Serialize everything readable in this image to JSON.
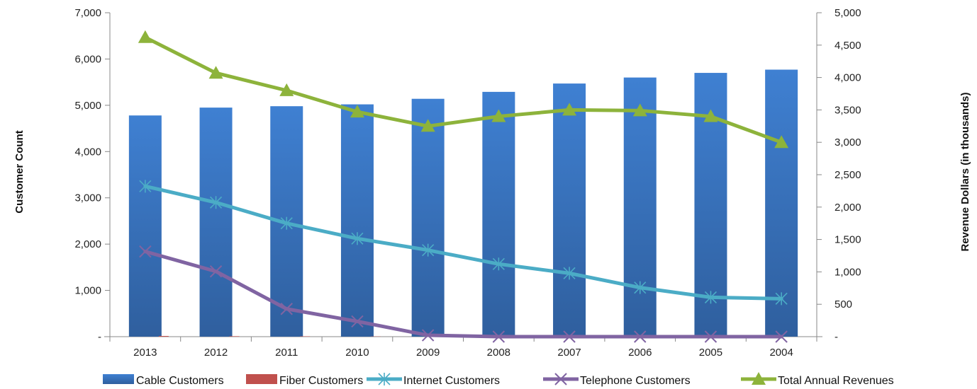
{
  "chart_data": {
    "type": "bar",
    "categories": [
      "2013",
      "2012",
      "2011",
      "2010",
      "2009",
      "2008",
      "2007",
      "2006",
      "2005",
      "2004"
    ],
    "y_left": {
      "label": "Customer Count",
      "range": [
        0,
        7000
      ],
      "ticks": [
        0,
        1000,
        2000,
        3000,
        4000,
        5000,
        6000,
        7000
      ],
      "tick_labels": [
        "-",
        "1,000",
        "2,000",
        "3,000",
        "4,000",
        "5,000",
        "6,000",
        "7,000"
      ]
    },
    "y_right": {
      "label": "Revenue Dollars (in thousands)",
      "range": [
        0,
        5000
      ],
      "ticks": [
        0,
        500,
        1000,
        1500,
        2000,
        2500,
        3000,
        3500,
        4000,
        4500,
        5000
      ],
      "tick_labels": [
        "-",
        "500",
        "1,000",
        "1,500",
        "2,000",
        "2,500",
        "3,000",
        "3,500",
        "4,000",
        "4,500",
        "5,000"
      ]
    },
    "series": [
      {
        "name": "Cable Customers",
        "type": "bar",
        "axis": "left",
        "color": "#3a78c8",
        "values": [
          4780,
          4950,
          4980,
          5020,
          5140,
          5290,
          5470,
          5600,
          5700,
          5770
        ]
      },
      {
        "name": "Fiber Customers",
        "type": "bar",
        "axis": "left",
        "color": "#c0504d",
        "values": [
          15,
          10,
          8,
          5,
          0,
          0,
          0,
          0,
          0,
          0
        ]
      },
      {
        "name": "Internet Customers",
        "type": "line",
        "axis": "left",
        "color": "#4bacc6",
        "marker": "star",
        "values": [
          3250,
          2900,
          2450,
          2120,
          1870,
          1570,
          1370,
          1060,
          850,
          820
        ]
      },
      {
        "name": "Telephone Customers",
        "type": "line",
        "axis": "left",
        "color": "#8064a2",
        "marker": "x",
        "values": [
          1840,
          1410,
          600,
          330,
          30,
          0,
          0,
          0,
          0,
          0
        ]
      },
      {
        "name": "Total Annual Revenues",
        "type": "line",
        "axis": "right",
        "color": "#8db33b",
        "marker": "triangle",
        "values": [
          4620,
          4070,
          3800,
          3470,
          3250,
          3400,
          3500,
          3490,
          3400,
          3000
        ]
      }
    ],
    "grid": false,
    "legend_position": "bottom"
  }
}
